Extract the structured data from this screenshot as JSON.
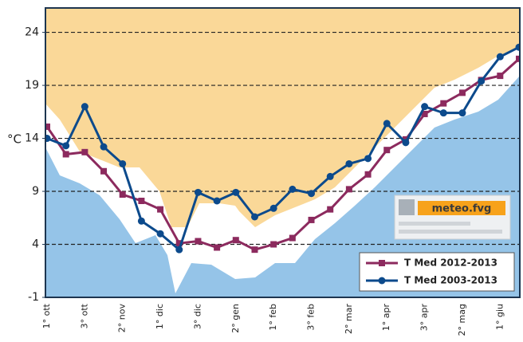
{
  "chart_data": {
    "type": "line",
    "y_label": "°C",
    "logo": "meteo.fvg",
    "categories": [
      "1° ott",
      null,
      "3° ott",
      null,
      "2° nov",
      null,
      "1° dic",
      null,
      "3° dic",
      null,
      "2° gen",
      null,
      "1° feb",
      null,
      "3° feb",
      null,
      "2° mar",
      null,
      "1° apr",
      null,
      "3° apr",
      null,
      "2° mag",
      null,
      "1° giu",
      null
    ],
    "series": [
      {
        "name": "T Med 2012-2013",
        "color": "#8c2a5e",
        "marker": "square",
        "values": [
          15.1,
          12.5,
          12.7,
          10.9,
          8.7,
          8.1,
          7.3,
          4.1,
          4.3,
          3.7,
          4.4,
          3.5,
          4.0,
          4.6,
          6.3,
          7.3,
          9.2,
          10.6,
          12.9,
          13.9,
          16.3,
          17.3,
          18.3,
          19.5,
          19.9,
          21.5
        ]
      },
      {
        "name": "T Med 2003-2013",
        "color": "#0c4a8c",
        "marker": "circle",
        "values": [
          14.0,
          13.3,
          17.0,
          13.2,
          11.6,
          6.2,
          5.0,
          3.5,
          8.9,
          8.1,
          8.9,
          6.6,
          7.4,
          9.2,
          8.8,
          10.4,
          11.6,
          12.1,
          15.4,
          13.6,
          17.0,
          16.4,
          16.4,
          19.4,
          21.7,
          22.6
        ]
      }
    ],
    "ylim": [
      -1,
      26.3
    ],
    "yticks": [
      -1,
      4,
      9,
      14,
      19,
      24
    ],
    "grid": true,
    "legend": "lower right"
  }
}
